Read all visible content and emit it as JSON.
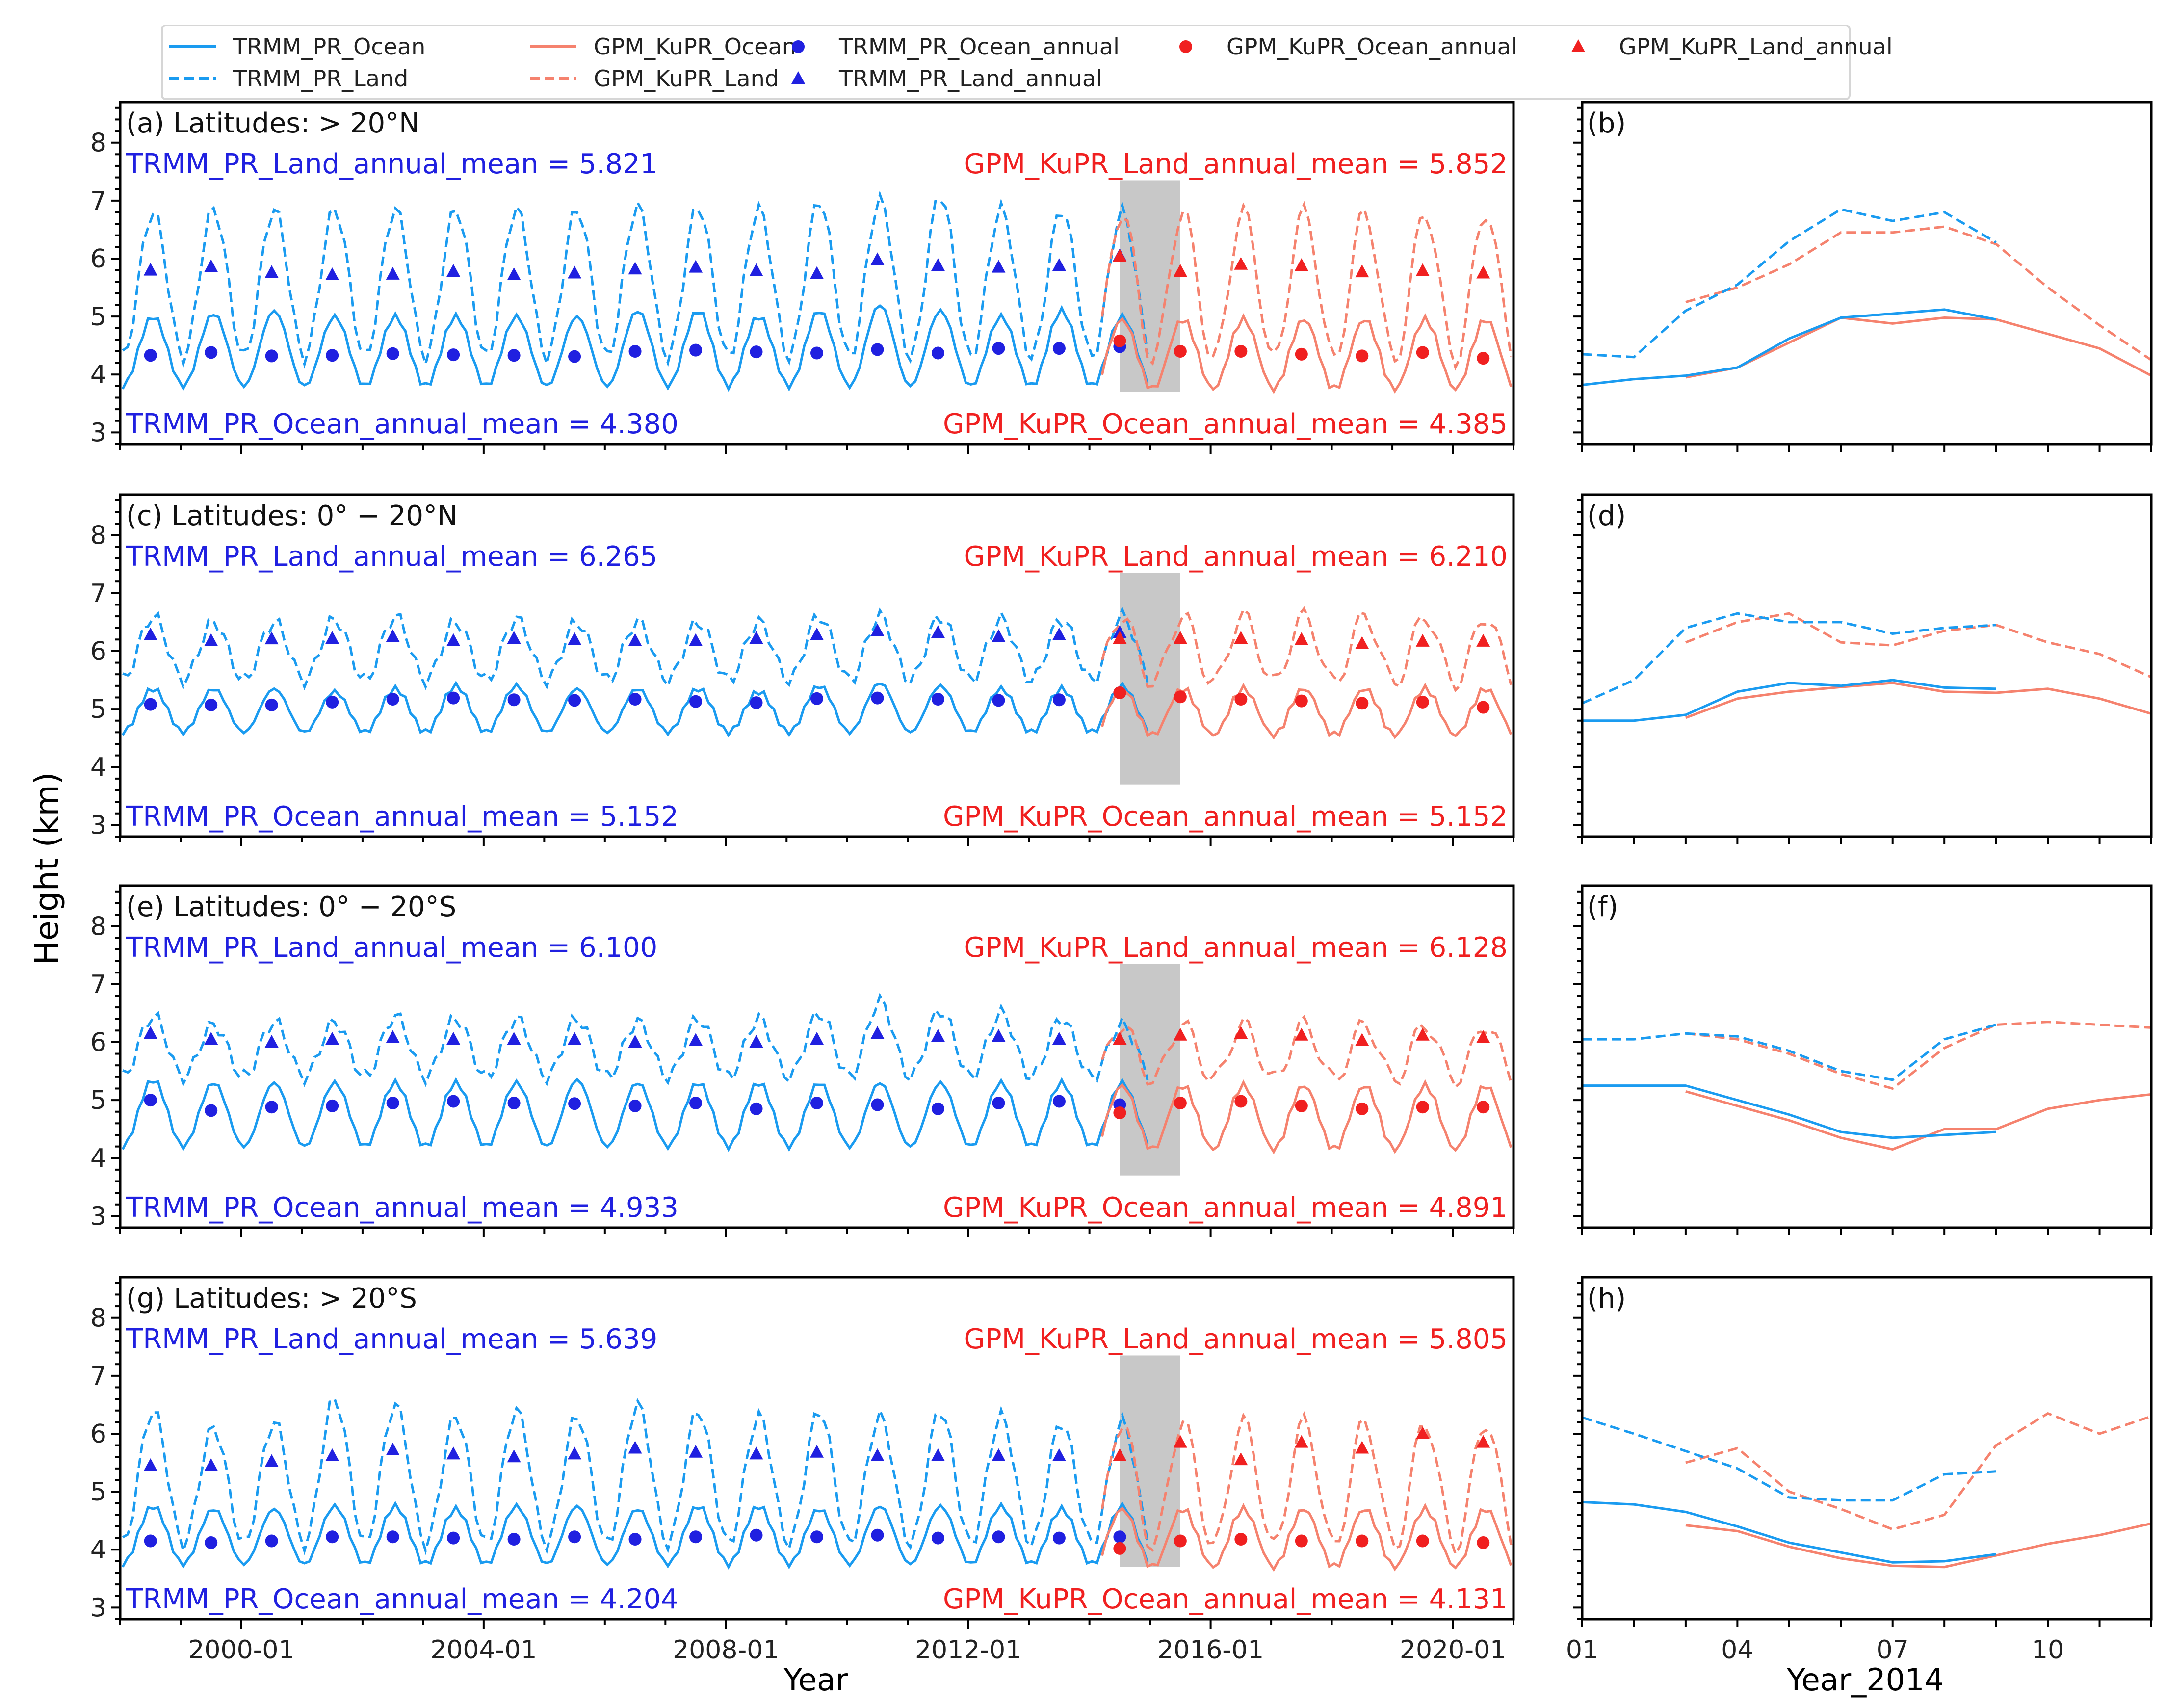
{
  "legend": {
    "items": [
      {
        "label": "TRMM_PR_Ocean",
        "kind": "solid",
        "color": "#1a9bf0"
      },
      {
        "label": "TRMM_PR_Land",
        "kind": "dashed",
        "color": "#1a9bf0"
      },
      {
        "label": "GPM_KuPR_Ocean",
        "kind": "solid",
        "color": "#f5826e"
      },
      {
        "label": "GPM_KuPR_Land",
        "kind": "dashed",
        "color": "#f5826e"
      },
      {
        "label": "TRMM_PR_Ocean_annual",
        "kind": "circle",
        "color": "#2020e0"
      },
      {
        "label": "TRMM_PR_Land_annual",
        "kind": "triangle",
        "color": "#2020e0"
      },
      {
        "label": "GPM_KuPR_Ocean_annual",
        "kind": "circle",
        "color": "#f02020"
      },
      {
        "label": "GPM_KuPR_Land_annual",
        "kind": "triangle",
        "color": "#f02020"
      }
    ]
  },
  "colors": {
    "trmm_line": "#1a9bf0",
    "gpm_line": "#f5826e",
    "trmm_mark": "#2020e0",
    "gpm_mark": "#f02020",
    "shade": "#c8c8c8"
  },
  "ylabel": "Height (km)",
  "xlabel_main": "Year",
  "xlabel_side": "Year_2014",
  "xticks_main": [
    "2000-01",
    "2004-01",
    "2008-01",
    "2012-01",
    "2016-01",
    "2020-01"
  ],
  "xticks_side": [
    "01",
    "04",
    "07",
    "10"
  ],
  "yticks": [
    "3",
    "4",
    "5",
    "6",
    "7",
    "8"
  ],
  "chart_data": [
    {
      "type": "line",
      "panel": "(a)",
      "title": "Latitudes: > 20°N",
      "ylim": [
        2.8,
        8.7
      ],
      "trmm_land_mean_label": "TRMM_PR_Land_annual_mean = 5.821",
      "gpm_land_mean_label": "GPM_KuPR_Land_annual_mean = 5.852",
      "trmm_ocean_mean_label": "TRMM_PR_Ocean_annual_mean = 4.380",
      "gpm_ocean_mean_label": "GPM_KuPR_Ocean_annual_mean = 4.385",
      "shade_x": [
        2014.0,
        2015.0
      ],
      "trmm_years": [
        1998,
        1999,
        2000,
        2001,
        2002,
        2003,
        2004,
        2005,
        2006,
        2007,
        2008,
        2009,
        2010,
        2011,
        2012,
        2013,
        2014
      ],
      "trmm_ocean_annual": [
        4.33,
        4.38,
        4.32,
        4.33,
        4.36,
        4.34,
        4.33,
        4.31,
        4.4,
        4.42,
        4.39,
        4.37,
        4.43,
        4.37,
        4.45,
        4.45,
        4.48
      ],
      "trmm_land_annual": [
        5.8,
        5.86,
        5.76,
        5.72,
        5.73,
        5.78,
        5.72,
        5.75,
        5.82,
        5.85,
        5.79,
        5.74,
        5.98,
        5.88,
        5.85,
        5.88,
        6.05
      ],
      "gpm_years": [
        2014,
        2015,
        2016,
        2017,
        2018,
        2019,
        2020
      ],
      "gpm_ocean_annual": [
        4.58,
        4.4,
        4.4,
        4.35,
        4.32,
        4.38,
        4.28
      ],
      "gpm_land_annual": [
        6.04,
        5.78,
        5.9,
        5.88,
        5.77,
        5.79,
        5.75
      ],
      "ocean_peak": [
        5.0,
        5.05,
        5.1,
        5.0,
        5.0,
        5.0,
        5.0,
        5.0,
        5.1,
        5.1,
        5.0,
        5.1,
        5.2,
        5.1,
        5.0,
        5.1,
        5.0
      ],
      "land_peak": [
        6.8,
        6.85,
        6.85,
        6.85,
        6.85,
        6.85,
        6.85,
        6.85,
        6.9,
        6.9,
        6.85,
        7.0,
        7.0,
        7.1,
        6.85,
        6.85,
        6.8
      ],
      "ocean_trough": 3.8,
      "land_trough": 4.3,
      "side": {
        "months": [
          1,
          2,
          3,
          4,
          5,
          6,
          7,
          8,
          9,
          10,
          11,
          12
        ],
        "trmm_ocean": [
          3.82,
          3.92,
          3.98,
          4.12,
          4.62,
          4.98,
          5.05,
          5.12,
          4.95,
          null,
          null,
          null
        ],
        "trmm_land": [
          4.35,
          4.3,
          5.1,
          5.55,
          6.3,
          6.85,
          6.65,
          6.8,
          6.28,
          null,
          null,
          null
        ],
        "gpm_ocean": [
          null,
          null,
          3.95,
          4.12,
          4.55,
          4.98,
          4.88,
          4.98,
          4.95,
          4.7,
          4.45,
          3.98
        ],
        "gpm_land": [
          null,
          null,
          5.25,
          5.5,
          5.9,
          6.45,
          6.45,
          6.55,
          6.25,
          5.5,
          4.85,
          4.25
        ]
      }
    },
    {
      "type": "line",
      "panel": "(c)",
      "title": "Latitudes: 0° − 20°N",
      "ylim": [
        2.8,
        8.7
      ],
      "trmm_land_mean_label": "TRMM_PR_Land_annual_mean = 6.265",
      "gpm_land_mean_label": "GPM_KuPR_Land_annual_mean = 6.210",
      "trmm_ocean_mean_label": "TRMM_PR_Ocean_annual_mean = 5.152",
      "gpm_ocean_mean_label": "GPM_KuPR_Ocean_annual_mean = 5.152",
      "shade_x": [
        2014.0,
        2015.0
      ],
      "trmm_years": [
        1998,
        1999,
        2000,
        2001,
        2002,
        2003,
        2004,
        2005,
        2006,
        2007,
        2008,
        2009,
        2010,
        2011,
        2012,
        2013,
        2014
      ],
      "trmm_ocean_annual": [
        5.08,
        5.07,
        5.07,
        5.12,
        5.17,
        5.19,
        5.16,
        5.15,
        5.17,
        5.13,
        5.11,
        5.18,
        5.19,
        5.17,
        5.15,
        5.16,
        5.28
      ],
      "trmm_land_annual": [
        6.28,
        6.18,
        6.21,
        6.22,
        6.25,
        6.18,
        6.22,
        6.2,
        6.18,
        6.18,
        6.22,
        6.28,
        6.35,
        6.32,
        6.25,
        6.28,
        6.32
      ],
      "gpm_years": [
        2014,
        2015,
        2016,
        2017,
        2018,
        2019,
        2020
      ],
      "gpm_ocean_annual": [
        5.28,
        5.21,
        5.17,
        5.14,
        5.1,
        5.12,
        5.03
      ],
      "gpm_land_annual": [
        6.22,
        6.22,
        6.22,
        6.2,
        6.13,
        6.17,
        6.17
      ],
      "ocean_peak": [
        5.35,
        5.35,
        5.35,
        5.3,
        5.35,
        5.4,
        5.4,
        5.35,
        5.35,
        5.35,
        5.3,
        5.4,
        5.45,
        5.4,
        5.35,
        5.35,
        5.4
      ],
      "land_peak": [
        6.6,
        6.5,
        6.5,
        6.55,
        6.6,
        6.5,
        6.55,
        6.5,
        6.5,
        6.5,
        6.5,
        6.6,
        6.6,
        6.6,
        6.55,
        6.55,
        6.6
      ],
      "ocean_trough": 4.6,
      "land_trough": 5.5,
      "side": {
        "months": [
          1,
          2,
          3,
          4,
          5,
          6,
          7,
          8,
          9,
          10,
          11,
          12
        ],
        "trmm_ocean": [
          4.8,
          4.8,
          4.9,
          5.3,
          5.45,
          5.4,
          5.5,
          5.37,
          5.35,
          null,
          null,
          null
        ],
        "trmm_land": [
          5.1,
          5.5,
          6.4,
          6.65,
          6.5,
          6.5,
          6.3,
          6.4,
          6.45,
          null,
          null,
          null
        ],
        "gpm_ocean": [
          null,
          null,
          4.85,
          5.18,
          5.3,
          5.38,
          5.45,
          5.3,
          5.28,
          5.35,
          5.18,
          4.92
        ],
        "gpm_land": [
          null,
          null,
          6.15,
          6.5,
          6.65,
          6.15,
          6.1,
          6.35,
          6.45,
          6.15,
          5.95,
          5.55
        ]
      }
    },
    {
      "type": "line",
      "panel": "(e)",
      "title": "Latitudes: 0° − 20°S",
      "ylim": [
        2.8,
        8.7
      ],
      "trmm_land_mean_label": "TRMM_PR_Land_annual_mean = 6.100",
      "gpm_land_mean_label": "GPM_KuPR_Land_annual_mean = 6.128",
      "trmm_ocean_mean_label": "TRMM_PR_Ocean_annual_mean = 4.933",
      "gpm_ocean_mean_label": "GPM_KuPR_Ocean_annual_mean = 4.891",
      "shade_x": [
        2014.0,
        2015.0
      ],
      "trmm_years": [
        1998,
        1999,
        2000,
        2001,
        2002,
        2003,
        2004,
        2005,
        2006,
        2007,
        2008,
        2009,
        2010,
        2011,
        2012,
        2013,
        2014
      ],
      "trmm_ocean_annual": [
        5.0,
        4.82,
        4.88,
        4.9,
        4.95,
        4.98,
        4.95,
        4.94,
        4.9,
        4.95,
        4.85,
        4.95,
        4.92,
        4.85,
        4.95,
        4.98,
        4.92
      ],
      "trmm_land_annual": [
        6.15,
        6.05,
        6.0,
        6.05,
        6.08,
        6.05,
        6.05,
        6.05,
        6.0,
        6.03,
        6.0,
        6.05,
        6.15,
        6.1,
        6.1,
        6.05,
        6.05
      ],
      "gpm_years": [
        2014,
        2015,
        2016,
        2017,
        2018,
        2019,
        2020
      ],
      "gpm_ocean_annual": [
        4.78,
        4.95,
        4.98,
        4.9,
        4.85,
        4.88,
        4.88
      ],
      "gpm_land_annual": [
        6.05,
        6.12,
        6.15,
        6.12,
        6.03,
        6.12,
        6.08
      ],
      "ocean_peak": [
        5.35,
        5.3,
        5.3,
        5.3,
        5.3,
        5.3,
        5.3,
        5.35,
        5.3,
        5.3,
        5.3,
        5.3,
        5.3,
        5.3,
        5.3,
        5.3,
        5.3
      ],
      "land_peak": [
        6.45,
        6.3,
        6.35,
        6.35,
        6.45,
        6.4,
        6.4,
        6.4,
        6.35,
        6.4,
        6.4,
        6.5,
        6.7,
        6.55,
        6.5,
        6.4,
        6.3
      ],
      "ocean_trough": 4.2,
      "land_trough": 5.4,
      "side": {
        "months": [
          1,
          2,
          3,
          4,
          5,
          6,
          7,
          8,
          9,
          10,
          11,
          12
        ],
        "trmm_ocean": [
          5.25,
          5.25,
          5.25,
          5.0,
          4.75,
          4.45,
          4.35,
          4.4,
          4.45,
          null,
          null,
          null
        ],
        "trmm_land": [
          6.05,
          6.05,
          6.15,
          6.1,
          5.85,
          5.5,
          5.35,
          6.05,
          6.3,
          null,
          null,
          null
        ],
        "gpm_ocean": [
          null,
          null,
          5.15,
          4.9,
          4.65,
          4.35,
          4.15,
          4.5,
          4.5,
          4.85,
          5.0,
          5.1
        ],
        "gpm_land": [
          null,
          null,
          6.15,
          6.05,
          5.8,
          5.45,
          5.2,
          5.9,
          6.3,
          6.35,
          6.3,
          6.25
        ]
      }
    },
    {
      "type": "line",
      "panel": "(g)",
      "title": "Latitudes: > 20°S",
      "ylim": [
        2.8,
        8.7
      ],
      "trmm_land_mean_label": "TRMM_PR_Land_annual_mean = 5.639",
      "gpm_land_mean_label": "GPM_KuPR_Land_annual_mean = 5.805",
      "trmm_ocean_mean_label": "TRMM_PR_Ocean_annual_mean = 4.204",
      "gpm_ocean_mean_label": "GPM_KuPR_Ocean_annual_mean = 4.131",
      "shade_x": [
        2014.0,
        2015.0
      ],
      "trmm_years": [
        1998,
        1999,
        2000,
        2001,
        2002,
        2003,
        2004,
        2005,
        2006,
        2007,
        2008,
        2009,
        2010,
        2011,
        2012,
        2013,
        2014
      ],
      "trmm_ocean_annual": [
        4.15,
        4.12,
        4.15,
        4.22,
        4.22,
        4.2,
        4.18,
        4.22,
        4.18,
        4.22,
        4.25,
        4.22,
        4.25,
        4.2,
        4.22,
        4.2,
        4.22
      ],
      "trmm_land_annual": [
        5.45,
        5.45,
        5.52,
        5.62,
        5.72,
        5.65,
        5.6,
        5.65,
        5.75,
        5.68,
        5.65,
        5.68,
        5.62,
        5.62,
        5.62,
        5.62,
        5.62
      ],
      "gpm_years": [
        2014,
        2015,
        2016,
        2017,
        2018,
        2019,
        2020
      ],
      "gpm_ocean_annual": [
        4.02,
        4.15,
        4.18,
        4.15,
        4.15,
        4.15,
        4.12
      ],
      "gpm_land_annual": [
        5.62,
        5.85,
        5.55,
        5.85,
        5.75,
        6.0,
        5.85
      ],
      "ocean_peak": [
        4.75,
        4.7,
        4.7,
        4.75,
        4.75,
        4.7,
        4.75,
        4.75,
        4.7,
        4.75,
        4.75,
        4.7,
        4.75,
        4.75,
        4.75,
        4.7,
        4.75
      ],
      "land_peak": [
        6.4,
        6.1,
        6.2,
        6.6,
        6.5,
        6.3,
        6.4,
        6.3,
        6.5,
        6.4,
        6.3,
        6.4,
        6.3,
        6.4,
        6.3,
        6.2,
        6.2
      ],
      "ocean_trough": 3.75,
      "land_trough": 4.1,
      "side": {
        "months": [
          1,
          2,
          3,
          4,
          5,
          6,
          7,
          8,
          9,
          10,
          11,
          12
        ],
        "trmm_ocean": [
          4.82,
          4.78,
          4.65,
          4.4,
          4.12,
          3.95,
          3.78,
          3.8,
          3.92,
          null,
          null,
          null
        ],
        "trmm_land": [
          6.28,
          6.0,
          5.7,
          5.4,
          4.9,
          4.85,
          4.85,
          5.3,
          5.35,
          null,
          null,
          null
        ],
        "gpm_ocean": [
          null,
          null,
          4.42,
          4.32,
          4.05,
          3.85,
          3.72,
          3.7,
          3.9,
          4.1,
          4.25,
          4.45
        ],
        "gpm_land": [
          null,
          null,
          5.5,
          5.75,
          5.0,
          4.7,
          4.35,
          4.6,
          5.8,
          6.35,
          6.0,
          6.3
        ]
      }
    }
  ]
}
